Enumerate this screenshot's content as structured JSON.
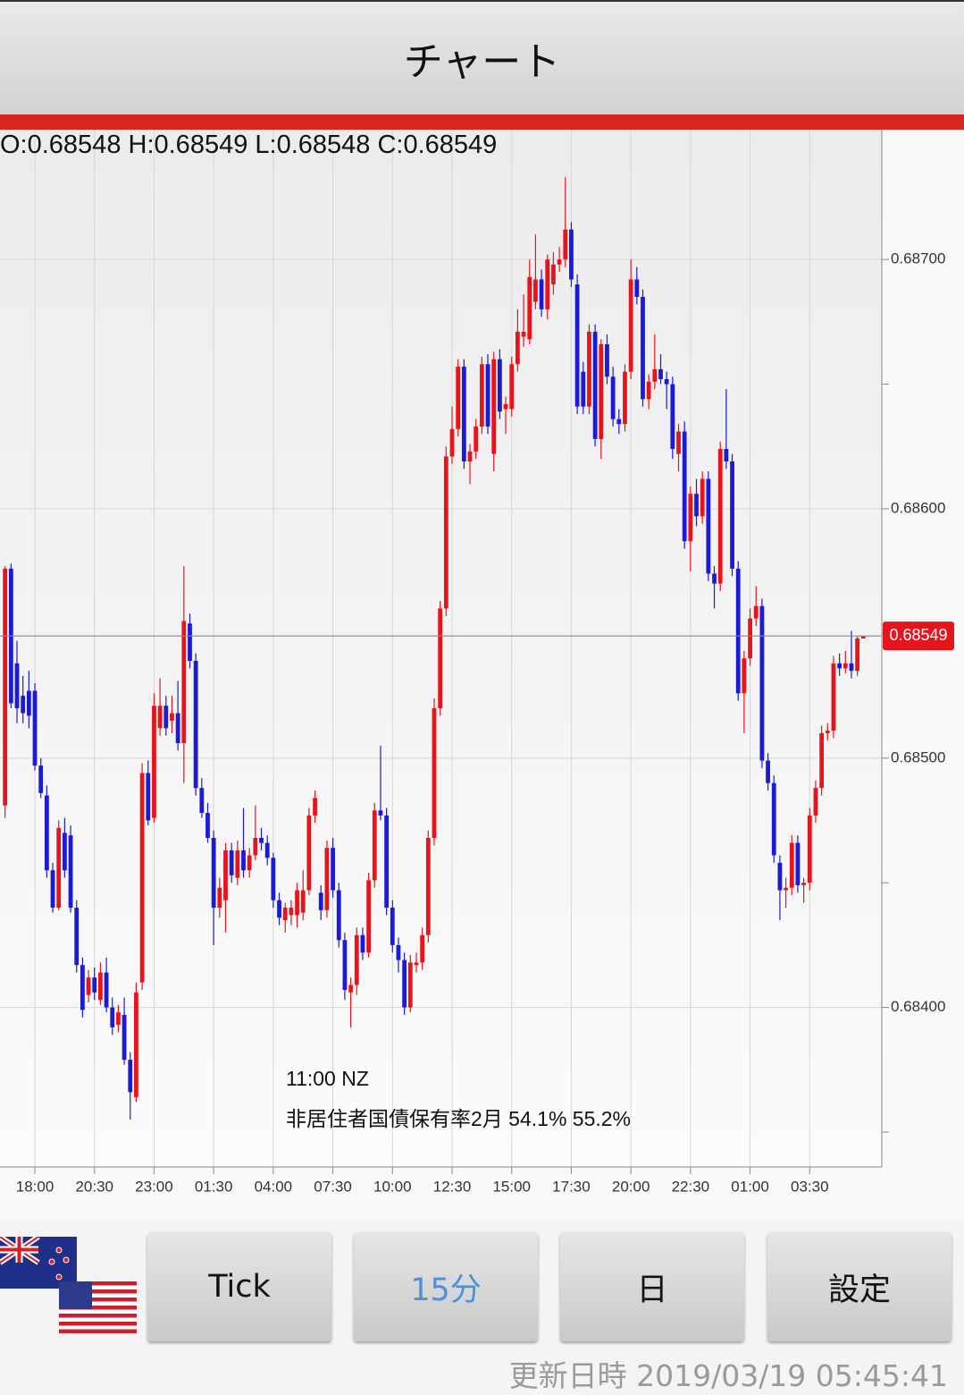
{
  "header": {
    "title": "チャート"
  },
  "info": {
    "ohlc_label": "O:0.68548 H:0.68549 L:0.68548 C:0.68549"
  },
  "chart_data": {
    "type": "candlestick",
    "up_color": "#e8141b",
    "down_color": "#1a1ad8",
    "grid": true,
    "xlim": [
      -0.85,
      147.1
    ],
    "xticks": [
      {
        "value": 5,
        "label": "18:00"
      },
      {
        "value": 15,
        "label": "20:30"
      },
      {
        "value": 25,
        "label": "23:00"
      },
      {
        "value": 35,
        "label": "01:30"
      },
      {
        "value": 45,
        "label": "04:00"
      },
      {
        "value": 55,
        "label": "07:30"
      },
      {
        "value": 65,
        "label": "10:00"
      },
      {
        "value": 75,
        "label": "12:30"
      },
      {
        "value": 85,
        "label": "15:00"
      },
      {
        "value": 95,
        "label": "17:30"
      },
      {
        "value": 105,
        "label": "20:00"
      },
      {
        "value": 115,
        "label": "22:30"
      },
      {
        "value": 125,
        "label": "01:00"
      },
      {
        "value": 135,
        "label": "03:30"
      }
    ],
    "ylim": [
      0.68336,
      0.68751
    ],
    "yticks": [
      {
        "value": 0.687,
        "label": "0.68700"
      },
      {
        "value": 0.686,
        "label": "0.68600"
      },
      {
        "value": 0.685,
        "label": "0.68500"
      },
      {
        "value": 0.684,
        "label": "0.68400"
      }
    ],
    "minor_yticks": [
      0.6865,
      0.6855,
      0.6845,
      0.6835
    ],
    "last_price": 0.68549,
    "annotation": {
      "time": "11:00 NZ",
      "text": "非居住者国債保有率2月 54.1% 55.2%"
    },
    "open": [
      0.68481,
      0.68576,
      0.68538,
      0.68525,
      0.68527,
      0.68527,
      0.68497,
      0.68485,
      0.68455,
      0.6844,
      0.6847,
      0.68469,
      0.6844,
      0.68417,
      0.68405,
      0.68412,
      0.68403,
      0.68414,
      0.684,
      0.68393,
      0.68397,
      0.68379,
      0.68364,
      0.6841,
      0.68494,
      0.68476,
      0.68512,
      0.68521,
      0.68515,
      0.68518,
      0.68506,
      0.68554,
      0.68539,
      0.68488,
      0.68478,
      0.68468,
      0.6844,
      0.68443,
      0.68463,
      0.68452,
      0.68463,
      0.68455,
      0.68461,
      0.68468,
      0.68466,
      0.6846,
      0.68443,
      0.68435,
      0.68437,
      0.68437,
      0.68438,
      0.68447,
      0.68477,
      0.68446,
      0.68439,
      0.68464,
      0.68447,
      0.68427,
      0.68406,
      0.68409,
      0.68429,
      0.68422,
      0.68451,
      0.68479,
      0.68477,
      0.6844,
      0.68425,
      0.68419,
      0.684,
      0.68417,
      0.68418,
      0.68429,
      0.68468,
      0.6852,
      0.6856,
      0.68621,
      0.68632,
      0.68657,
      0.68619,
      0.68623,
      0.68633,
      0.68658,
      0.68622,
      0.6866,
      0.6864,
      0.6864,
      0.68658,
      0.68669,
      0.68668,
      0.68683,
      0.68692,
      0.6868,
      0.6869,
      0.68698,
      0.687,
      0.68712,
      0.6869,
      0.68655,
      0.68641,
      0.68671,
      0.68628,
      0.68666,
      0.68653,
      0.68636,
      0.68634,
      0.68655,
      0.68692,
      0.68685,
      0.68644,
      0.68651,
      0.68656,
      0.68652,
      0.6865,
      0.68622,
      0.68631,
      0.68587,
      0.68606,
      0.68597,
      0.68612,
      0.68574,
      0.6857,
      0.68624,
      0.68619,
      0.68576,
      0.68526,
      0.6854,
      0.68556,
      0.68561,
      0.68499,
      0.6849,
      0.68458,
      0.68447,
      0.68448,
      0.68466,
      0.68449,
      0.6845,
      0.68477,
      0.68488,
      0.6851,
      0.68511,
      0.68538,
      0.68536,
      0.68538,
      0.68535,
      0.68548
    ],
    "high": [
      0.68577,
      0.68578,
      0.68547,
      0.68533,
      0.68535,
      0.6853,
      0.685,
      0.68489,
      0.68458,
      0.68475,
      0.68476,
      0.68473,
      0.68443,
      0.6842,
      0.68415,
      0.68416,
      0.68418,
      0.6842,
      0.68404,
      0.68401,
      0.68404,
      0.68382,
      0.6841,
      0.68498,
      0.68499,
      0.68526,
      0.68532,
      0.68525,
      0.68525,
      0.68531,
      0.68577,
      0.68558,
      0.68542,
      0.68492,
      0.68482,
      0.68471,
      0.68452,
      0.68466,
      0.68466,
      0.68467,
      0.6848,
      0.68464,
      0.68481,
      0.68472,
      0.68469,
      0.68462,
      0.68446,
      0.68442,
      0.68443,
      0.6845,
      0.68455,
      0.6848,
      0.68487,
      0.68449,
      0.68467,
      0.68468,
      0.6845,
      0.6843,
      0.68412,
      0.68432,
      0.68432,
      0.68454,
      0.68482,
      0.68505,
      0.6848,
      0.68443,
      0.68428,
      0.68422,
      0.68421,
      0.68422,
      0.68432,
      0.68471,
      0.68524,
      0.68563,
      0.68625,
      0.68641,
      0.6866,
      0.6866,
      0.68626,
      0.68636,
      0.68661,
      0.68662,
      0.68663,
      0.68664,
      0.68645,
      0.68661,
      0.6868,
      0.68686,
      0.687,
      0.6871,
      0.68696,
      0.68702,
      0.68703,
      0.68705,
      0.68733,
      0.68715,
      0.68694,
      0.68659,
      0.68674,
      0.68674,
      0.68668,
      0.6867,
      0.68657,
      0.6864,
      0.68658,
      0.687,
      0.68697,
      0.68688,
      0.68654,
      0.6867,
      0.68662,
      0.68655,
      0.68653,
      0.68634,
      0.68635,
      0.68609,
      0.68612,
      0.68615,
      0.68615,
      0.68577,
      0.68627,
      0.68648,
      0.68622,
      0.68579,
      0.68543,
      0.6856,
      0.68569,
      0.68564,
      0.68502,
      0.68493,
      0.68461,
      0.68452,
      0.68469,
      0.68469,
      0.68452,
      0.6848,
      0.68491,
      0.68513,
      0.68514,
      0.68541,
      0.68542,
      0.68543,
      0.68551,
      0.68549,
      0.68549
    ],
    "low": [
      0.68476,
      0.6852,
      0.68514,
      0.68514,
      0.68512,
      0.68495,
      0.68484,
      0.68452,
      0.68438,
      0.68439,
      0.68452,
      0.68438,
      0.68414,
      0.68396,
      0.68402,
      0.68403,
      0.68401,
      0.68398,
      0.68389,
      0.6839,
      0.68377,
      0.68355,
      0.68362,
      0.68407,
      0.68473,
      0.68474,
      0.68509,
      0.68509,
      0.6851,
      0.68503,
      0.6849,
      0.68536,
      0.68485,
      0.68476,
      0.68466,
      0.68425,
      0.68436,
      0.6843,
      0.6845,
      0.68449,
      0.68452,
      0.68452,
      0.68459,
      0.68463,
      0.68457,
      0.6844,
      0.68433,
      0.6843,
      0.68433,
      0.68432,
      0.68435,
      0.68445,
      0.68474,
      0.68435,
      0.68436,
      0.68444,
      0.68424,
      0.68403,
      0.68392,
      0.68405,
      0.68419,
      0.6842,
      0.68448,
      0.68475,
      0.68437,
      0.68422,
      0.68414,
      0.68397,
      0.68398,
      0.68414,
      0.68415,
      0.68426,
      0.68465,
      0.68517,
      0.68557,
      0.68618,
      0.68629,
      0.68616,
      0.6861,
      0.6862,
      0.6863,
      0.6863,
      0.68615,
      0.68636,
      0.6863,
      0.68637,
      0.68655,
      0.68665,
      0.68666,
      0.6868,
      0.68677,
      0.68676,
      0.68686,
      0.68695,
      0.68697,
      0.68689,
      0.68638,
      0.68638,
      0.68638,
      0.68625,
      0.6862,
      0.6865,
      0.68633,
      0.6863,
      0.68631,
      0.68652,
      0.68682,
      0.68641,
      0.6864,
      0.68648,
      0.6865,
      0.6864,
      0.6862,
      0.68615,
      0.68584,
      0.68575,
      0.68593,
      0.68594,
      0.68571,
      0.6856,
      0.68567,
      0.68616,
      0.68573,
      0.68523,
      0.6851,
      0.68537,
      0.68553,
      0.68496,
      0.68487,
      0.68458,
      0.68435,
      0.6844,
      0.68445,
      0.68446,
      0.68442,
      0.68447,
      0.68474,
      0.68485,
      0.68507,
      0.68508,
      0.68533,
      0.68534,
      0.68532,
      0.68533,
      0.68548
    ],
    "close": [
      0.68576,
      0.68522,
      0.6852,
      0.68518,
      0.68517,
      0.68497,
      0.68486,
      0.68455,
      0.6844,
      0.68472,
      0.68455,
      0.6844,
      0.68417,
      0.68399,
      0.68412,
      0.68406,
      0.68414,
      0.684,
      0.68392,
      0.68398,
      0.68379,
      0.68366,
      0.68406,
      0.68494,
      0.68475,
      0.68521,
      0.68521,
      0.68512,
      0.68518,
      0.68506,
      0.68555,
      0.68539,
      0.68488,
      0.68478,
      0.68468,
      0.6844,
      0.68448,
      0.68463,
      0.68453,
      0.68463,
      0.68455,
      0.68461,
      0.68468,
      0.68466,
      0.6846,
      0.68443,
      0.68436,
      0.6844,
      0.6844,
      0.68447,
      0.68447,
      0.68477,
      0.68484,
      0.68439,
      0.68464,
      0.68447,
      0.68427,
      0.68407,
      0.68409,
      0.68429,
      0.68422,
      0.68451,
      0.68479,
      0.68477,
      0.6844,
      0.68425,
      0.68419,
      0.684,
      0.68418,
      0.68418,
      0.68429,
      0.68468,
      0.6852,
      0.6856,
      0.68621,
      0.68632,
      0.68657,
      0.68619,
      0.68623,
      0.68633,
      0.68658,
      0.68633,
      0.6866,
      0.68639,
      0.68642,
      0.68658,
      0.68671,
      0.68671,
      0.68693,
      0.68692,
      0.6868,
      0.687,
      0.68698,
      0.687,
      0.68712,
      0.68692,
      0.68641,
      0.68641,
      0.68671,
      0.68628,
      0.68666,
      0.68653,
      0.68636,
      0.68634,
      0.68655,
      0.68692,
      0.68685,
      0.68644,
      0.68651,
      0.68656,
      0.68652,
      0.6865,
      0.68624,
      0.68631,
      0.68587,
      0.68606,
      0.68597,
      0.68612,
      0.68574,
      0.6857,
      0.68624,
      0.68619,
      0.68576,
      0.68526,
      0.6854,
      0.68556,
      0.68561,
      0.68499,
      0.6849,
      0.68461,
      0.68447,
      0.68448,
      0.68466,
      0.68449,
      0.6845,
      0.68477,
      0.68488,
      0.6851,
      0.68511,
      0.68538,
      0.68536,
      0.68538,
      0.68535,
      0.68548,
      0.68549
    ]
  },
  "buttons": [
    "Tick",
    "15分",
    "日",
    "設定"
  ],
  "footer": {
    "updated": "更新日時 2019/03/19 05:45:41"
  }
}
